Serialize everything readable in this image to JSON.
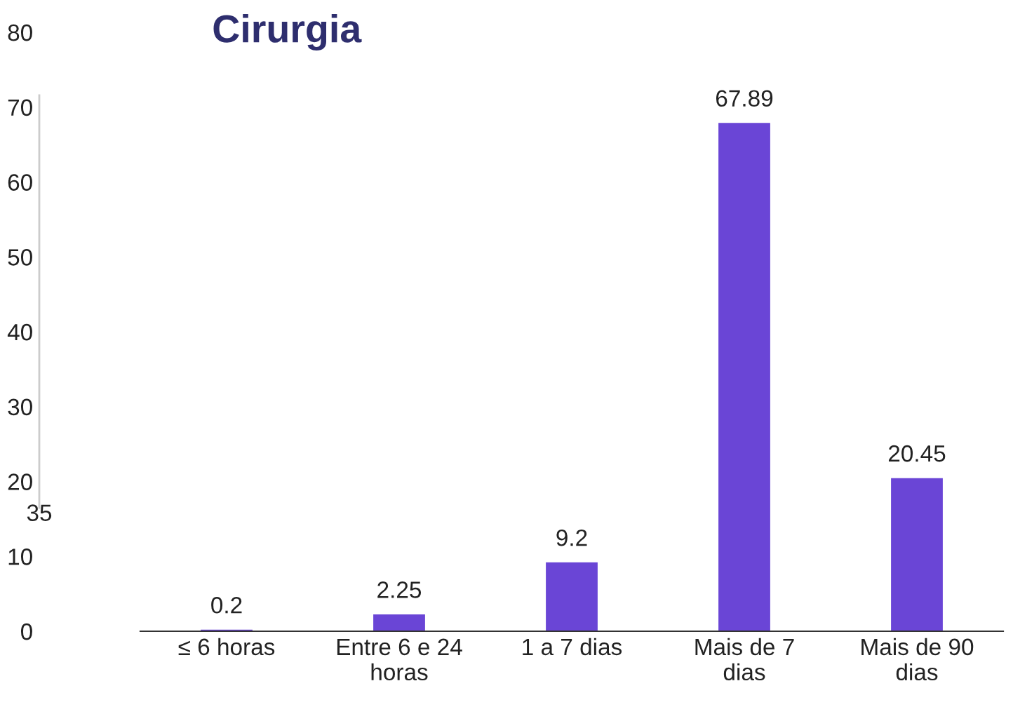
{
  "chart_data": {
    "type": "bar",
    "title": "Cirurgia",
    "categories": [
      "≤ 6 horas",
      "Entre 6 e 24\nhoras",
      "1 a 7 dias",
      "Mais de 7\ndias",
      "Mais de 90\ndias"
    ],
    "values": [
      0.2,
      2.25,
      9.2,
      67.89,
      20.45
    ],
    "color": "#6a45d6",
    "ylim": [
      0,
      80
    ],
    "yticks": [
      0,
      10,
      20,
      30,
      40,
      50,
      60,
      70,
      80
    ],
    "grid": false,
    "data_labels": true,
    "annotations": [
      "35"
    ]
  }
}
